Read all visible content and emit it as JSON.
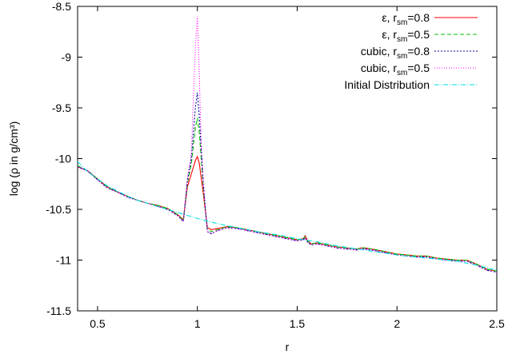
{
  "chart_data": {
    "type": "line",
    "xlabel": "r",
    "ylabel": "log (ρ in g/cm³)",
    "xlim": [
      0.4,
      2.5
    ],
    "ylim": [
      -11.5,
      -8.5
    ],
    "xticks": [
      0.5,
      1,
      1.5,
      2,
      2.5
    ],
    "xtick_labels": [
      "0.5",
      "1",
      "1.5",
      "2",
      "2.5"
    ],
    "yticks": [
      -11.5,
      -11,
      -10.5,
      -10,
      -9.5,
      -9,
      -8.5
    ],
    "ytick_labels": [
      "-11.5",
      "-11",
      "-10.5",
      "-10",
      "-9.5",
      "-9",
      "-8.5"
    ],
    "grid": false,
    "legend_position": "top-right",
    "series": [
      {
        "name": "ε, r_sm=0.8",
        "legend_main": "ε, r",
        "legend_sub": "sm",
        "legend_tail": "=0.8",
        "color": "#ff0000",
        "dash": "",
        "x": [
          0.4,
          0.45,
          0.5,
          0.55,
          0.6,
          0.65,
          0.7,
          0.75,
          0.8,
          0.85,
          0.9,
          0.93,
          0.95,
          0.97,
          0.99,
          1.0,
          1.01,
          1.03,
          1.05,
          1.07,
          1.1,
          1.15,
          1.2,
          1.3,
          1.4,
          1.5,
          1.53,
          1.54,
          1.55,
          1.57,
          1.6,
          1.7,
          1.8,
          1.82,
          1.84,
          1.9,
          2.0,
          2.05,
          2.1,
          2.15,
          2.2,
          2.25,
          2.3,
          2.35,
          2.4,
          2.45,
          2.5
        ],
        "y": [
          -10.08,
          -10.12,
          -10.2,
          -10.28,
          -10.33,
          -10.37,
          -10.41,
          -10.44,
          -10.46,
          -10.49,
          -10.55,
          -10.6,
          -10.28,
          -10.15,
          -10.02,
          -9.98,
          -10.05,
          -10.35,
          -10.68,
          -10.7,
          -10.69,
          -10.67,
          -10.68,
          -10.72,
          -10.76,
          -10.8,
          -10.79,
          -10.76,
          -10.8,
          -10.84,
          -10.83,
          -10.87,
          -10.89,
          -10.88,
          -10.88,
          -10.9,
          -10.94,
          -10.95,
          -10.96,
          -10.96,
          -10.98,
          -10.99,
          -11.0,
          -11.0,
          -11.04,
          -11.09,
          -11.11
        ]
      },
      {
        "name": "ε, r_sm=0.5",
        "legend_main": "ε, r",
        "legend_sub": "sm",
        "legend_tail": "=0.5",
        "color": "#00c000",
        "dash": "5,3",
        "x": [
          0.4,
          0.45,
          0.5,
          0.55,
          0.6,
          0.65,
          0.7,
          0.75,
          0.8,
          0.85,
          0.9,
          0.93,
          0.95,
          0.97,
          0.99,
          1.0,
          1.01,
          1.03,
          1.05,
          1.07,
          1.1,
          1.15,
          1.2,
          1.3,
          1.4,
          1.5,
          1.53,
          1.54,
          1.55,
          1.57,
          1.6,
          1.7,
          1.8,
          1.82,
          1.84,
          1.9,
          2.0,
          2.05,
          2.1,
          2.15,
          2.2,
          2.25,
          2.3,
          2.35,
          2.4,
          2.45,
          2.5
        ],
        "y": [
          -10.07,
          -10.12,
          -10.2,
          -10.28,
          -10.33,
          -10.37,
          -10.41,
          -10.44,
          -10.46,
          -10.49,
          -10.55,
          -10.61,
          -10.25,
          -10.05,
          -9.7,
          -9.6,
          -9.75,
          -10.3,
          -10.7,
          -10.72,
          -10.7,
          -10.67,
          -10.68,
          -10.72,
          -10.76,
          -10.8,
          -10.79,
          -10.77,
          -10.81,
          -10.84,
          -10.83,
          -10.87,
          -10.89,
          -10.88,
          -10.88,
          -10.9,
          -10.94,
          -10.95,
          -10.96,
          -10.96,
          -10.98,
          -10.99,
          -11.0,
          -11.0,
          -11.04,
          -11.09,
          -11.11
        ]
      },
      {
        "name": "cubic, r_sm=0.8",
        "legend_main": "cubic, r",
        "legend_sub": "sm",
        "legend_tail": "=0.8",
        "color": "#0000a0",
        "dash": "2,2",
        "x": [
          0.4,
          0.45,
          0.5,
          0.55,
          0.6,
          0.65,
          0.7,
          0.75,
          0.8,
          0.85,
          0.9,
          0.93,
          0.95,
          0.97,
          0.99,
          1.0,
          1.01,
          1.03,
          1.05,
          1.07,
          1.1,
          1.15,
          1.2,
          1.3,
          1.4,
          1.5,
          1.53,
          1.54,
          1.55,
          1.57,
          1.6,
          1.7,
          1.8,
          1.82,
          1.84,
          1.9,
          2.0,
          2.05,
          2.1,
          2.15,
          2.2,
          2.25,
          2.3,
          2.35,
          2.4,
          2.45,
          2.5
        ],
        "y": [
          -10.08,
          -10.12,
          -10.21,
          -10.29,
          -10.33,
          -10.38,
          -10.41,
          -10.44,
          -10.47,
          -10.5,
          -10.56,
          -10.62,
          -10.22,
          -10.0,
          -9.5,
          -9.35,
          -9.6,
          -10.25,
          -10.72,
          -10.74,
          -10.71,
          -10.68,
          -10.69,
          -10.73,
          -10.77,
          -10.81,
          -10.8,
          -10.78,
          -10.82,
          -10.85,
          -10.84,
          -10.88,
          -10.9,
          -10.89,
          -10.89,
          -10.91,
          -10.95,
          -10.96,
          -10.97,
          -10.97,
          -10.99,
          -11.0,
          -11.01,
          -11.01,
          -11.05,
          -11.1,
          -11.12
        ]
      },
      {
        "name": "cubic, r_sm=0.5",
        "legend_main": "cubic, r",
        "legend_sub": "sm",
        "legend_tail": "=0.5",
        "color": "#ff00ff",
        "dash": "1,2",
        "x": [
          0.4,
          0.45,
          0.5,
          0.55,
          0.6,
          0.65,
          0.7,
          0.75,
          0.8,
          0.85,
          0.9,
          0.93,
          0.95,
          0.97,
          0.98,
          0.99,
          1.0,
          1.01,
          1.02,
          1.03,
          1.05,
          1.07,
          1.1,
          1.15,
          1.2,
          1.3,
          1.4,
          1.5,
          1.53,
          1.54,
          1.55,
          1.57,
          1.6,
          1.7,
          1.8,
          1.82,
          1.84,
          1.9,
          2.0,
          2.05,
          2.1,
          2.15,
          2.2,
          2.25,
          2.3,
          2.35,
          2.4,
          2.45,
          2.5
        ],
        "y": [
          -10.08,
          -10.12,
          -10.21,
          -10.29,
          -10.33,
          -10.38,
          -10.41,
          -10.44,
          -10.47,
          -10.5,
          -10.56,
          -10.62,
          -10.2,
          -9.95,
          -9.4,
          -8.9,
          -8.6,
          -9.2,
          -9.9,
          -10.25,
          -10.72,
          -10.74,
          -10.71,
          -10.68,
          -10.69,
          -10.73,
          -10.77,
          -10.81,
          -10.8,
          -10.78,
          -10.82,
          -10.85,
          -10.84,
          -10.88,
          -10.9,
          -10.89,
          -10.89,
          -10.91,
          -10.95,
          -10.96,
          -10.97,
          -10.97,
          -10.99,
          -11.0,
          -11.01,
          -11.01,
          -11.05,
          -11.1,
          -11.12
        ]
      },
      {
        "name": "Initial Distribution",
        "legend_main": "Initial Distribution",
        "legend_sub": "",
        "legend_tail": "",
        "color": "#00e0e0",
        "dash": "6,2,1,2",
        "x": [
          0.4,
          0.45,
          0.5,
          0.55,
          0.6,
          0.65,
          0.7,
          0.75,
          0.8,
          0.85,
          0.9,
          1.0,
          1.1,
          1.2,
          1.3,
          1.4,
          1.5,
          1.6,
          1.7,
          1.8,
          1.9,
          2.0,
          2.1,
          2.2,
          2.3,
          2.4,
          2.5
        ],
        "y": [
          -10.03,
          -10.13,
          -10.2,
          -10.27,
          -10.32,
          -10.37,
          -10.41,
          -10.44,
          -10.47,
          -10.5,
          -10.53,
          -10.59,
          -10.64,
          -10.68,
          -10.72,
          -10.75,
          -10.79,
          -10.82,
          -10.86,
          -10.89,
          -10.92,
          -10.95,
          -10.97,
          -10.99,
          -11.01,
          -11.05,
          -11.1
        ]
      }
    ]
  }
}
